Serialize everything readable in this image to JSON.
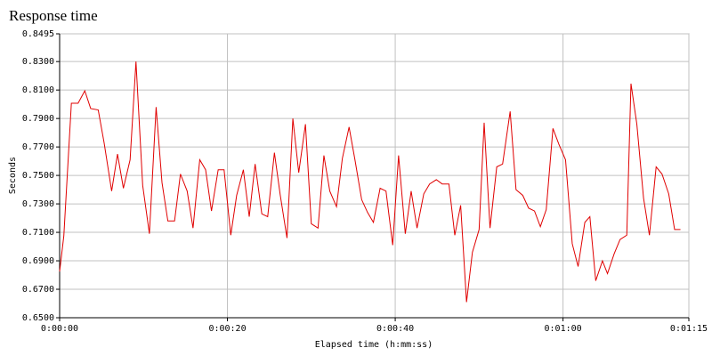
{
  "chart_data": {
    "type": "line",
    "title": "Response time",
    "x_label": "Elapsed time (h:mm:ss)",
    "y_label": "Seconds",
    "x": [
      0,
      0.5,
      1.4,
      2.2,
      3.0,
      3.7,
      4.6,
      5.3,
      6.2,
      6.9,
      7.6,
      8.4,
      9.1,
      9.9,
      10.7,
      11.5,
      12.2,
      12.9,
      13.7,
      14.4,
      15.2,
      15.9,
      16.7,
      17.4,
      18.1,
      18.9,
      19.6,
      20.4,
      21.1,
      21.9,
      22.6,
      23.3,
      24.1,
      24.8,
      25.6,
      26.3,
      27.1,
      27.8,
      28.5,
      29.3,
      30.0,
      30.8,
      31.5,
      32.2,
      33.0,
      33.7,
      34.5,
      35.2,
      36.0,
      36.7,
      37.4,
      38.2,
      38.9,
      39.7,
      40.4,
      41.2,
      41.9,
      42.6,
      43.4,
      44.1,
      44.9,
      45.6,
      46.4,
      47.1,
      47.8,
      48.5,
      49.2,
      50.0,
      50.6,
      51.3,
      52.1,
      52.8,
      53.7,
      54.4,
      55.2,
      55.9,
      56.6,
      57.3,
      58.0,
      58.8,
      59.5,
      60.3,
      61.1,
      61.8,
      62.6,
      63.2,
      63.9,
      64.7,
      65.3,
      66.1,
      66.8,
      67.6,
      68.1,
      68.8,
      69.6,
      70.3,
      71.1,
      71.8,
      72.6,
      73.3,
      74.0
    ],
    "values": [
      0.6825,
      0.7075,
      0.8007,
      0.8007,
      0.8095,
      0.797,
      0.796,
      0.773,
      0.739,
      0.765,
      0.741,
      0.761,
      0.83,
      0.743,
      0.709,
      0.798,
      0.745,
      0.718,
      0.718,
      0.751,
      0.739,
      0.713,
      0.761,
      0.754,
      0.725,
      0.754,
      0.754,
      0.708,
      0.736,
      0.754,
      0.721,
      0.758,
      0.723,
      0.721,
      0.766,
      0.736,
      0.706,
      0.79,
      0.752,
      0.786,
      0.716,
      0.713,
      0.764,
      0.739,
      0.728,
      0.762,
      0.784,
      0.761,
      0.733,
      0.724,
      0.717,
      0.741,
      0.739,
      0.701,
      0.764,
      0.709,
      0.739,
      0.713,
      0.737,
      0.744,
      0.747,
      0.744,
      0.744,
      0.708,
      0.729,
      0.661,
      0.696,
      0.712,
      0.787,
      0.713,
      0.756,
      0.758,
      0.795,
      0.74,
      0.736,
      0.727,
      0.725,
      0.714,
      0.726,
      0.783,
      0.772,
      0.761,
      0.702,
      0.686,
      0.717,
      0.721,
      0.676,
      0.69,
      0.681,
      0.695,
      0.705,
      0.708,
      0.8145,
      0.786,
      0.734,
      0.708,
      0.756,
      0.751,
      0.737,
      0.712,
      0.712
    ],
    "color": "#e00000",
    "xlim": [
      0,
      75
    ],
    "xticks": [
      {
        "value": 0,
        "label": "0:00:00"
      },
      {
        "value": 20,
        "label": "0:00:20"
      },
      {
        "value": 40,
        "label": "0:00:40"
      },
      {
        "value": 60,
        "label": "0:01:00"
      },
      {
        "value": 75,
        "label": "0:01:15"
      }
    ],
    "ylim": [
      0.65,
      0.8495
    ],
    "yticks": [
      {
        "value": 0.65,
        "label": "0.6500"
      },
      {
        "value": 0.67,
        "label": "0.6700"
      },
      {
        "value": 0.69,
        "label": "0.6900"
      },
      {
        "value": 0.71,
        "label": "0.7100"
      },
      {
        "value": 0.73,
        "label": "0.7300"
      },
      {
        "value": 0.75,
        "label": "0.7500"
      },
      {
        "value": 0.77,
        "label": "0.7700"
      },
      {
        "value": 0.79,
        "label": "0.7900"
      },
      {
        "value": 0.81,
        "label": "0.8100"
      },
      {
        "value": 0.83,
        "label": "0.8300"
      },
      {
        "value": 0.8495,
        "label": "0.8495"
      }
    ],
    "grid": true
  }
}
